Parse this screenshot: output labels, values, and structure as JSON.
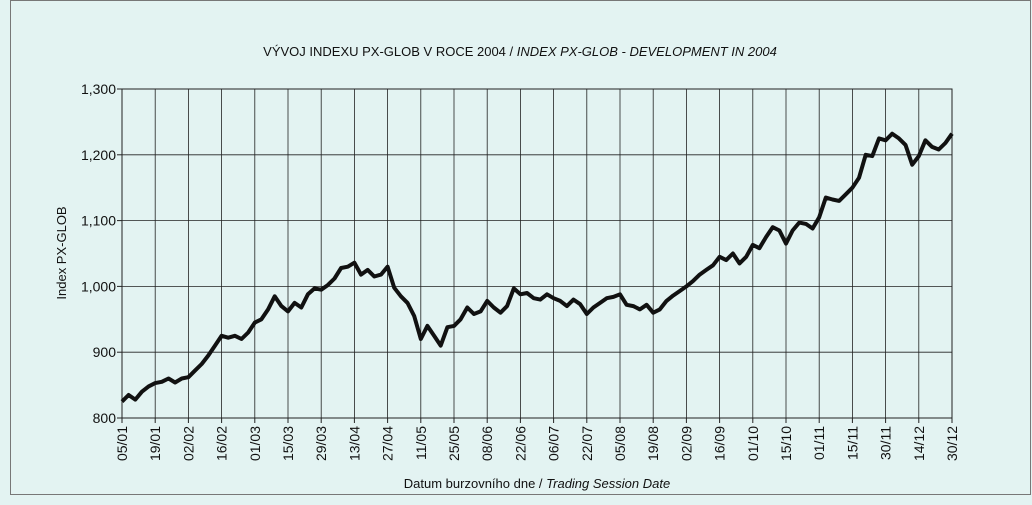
{
  "chart_data": {
    "type": "line",
    "title": "VÝVOJ INDEXU PX-GLOB V ROCE 2004 /",
    "title_en": "INDEX PX-GLOB - DEVELOPMENT IN 2004",
    "y_label": "Index PX-GLOB",
    "x_label": "Datum burzovního dne /",
    "x_label_en": "Trading Session Date",
    "categories": [
      "05/01",
      null,
      null,
      null,
      null,
      "19/01",
      null,
      null,
      null,
      null,
      "02/02",
      null,
      null,
      null,
      null,
      "16/02",
      null,
      null,
      null,
      null,
      "01/03",
      null,
      null,
      null,
      null,
      "15/03",
      null,
      null,
      null,
      null,
      "29/03",
      null,
      null,
      null,
      null,
      "13/04",
      null,
      null,
      null,
      null,
      "27/04",
      null,
      null,
      null,
      null,
      "11/05",
      null,
      null,
      null,
      null,
      "25/05",
      null,
      null,
      null,
      null,
      "08/06",
      null,
      null,
      null,
      null,
      "22/06",
      null,
      null,
      null,
      null,
      "06/07",
      null,
      null,
      null,
      null,
      "22/07",
      null,
      null,
      null,
      null,
      "05/08",
      null,
      null,
      null,
      null,
      "19/08",
      null,
      null,
      null,
      null,
      "02/09",
      null,
      null,
      null,
      null,
      "16/09",
      null,
      null,
      null,
      null,
      "01/10",
      null,
      null,
      null,
      null,
      "15/10",
      null,
      null,
      null,
      null,
      "01/11",
      null,
      null,
      null,
      null,
      "15/11",
      null,
      null,
      null,
      null,
      "30/11",
      null,
      null,
      null,
      null,
      "14/12",
      null,
      null,
      null,
      null,
      "30/12"
    ],
    "series": [
      {
        "name": "PX-GLOB",
        "color": "#111111",
        "values": [
          825,
          835,
          828,
          840,
          848,
          853,
          855,
          860,
          854,
          860,
          862,
          872,
          882,
          895,
          910,
          925,
          922,
          925,
          920,
          930,
          945,
          950,
          965,
          985,
          970,
          962,
          975,
          968,
          988,
          997,
          995,
          1002,
          1012,
          1028,
          1030,
          1036,
          1018,
          1025,
          1015,
          1018,
          1030,
          998,
          985,
          975,
          955,
          920,
          940,
          925,
          910,
          938,
          940,
          950,
          968,
          958,
          962,
          978,
          968,
          960,
          970,
          997,
          988,
          990,
          982,
          980,
          988,
          982,
          978,
          970,
          980,
          973,
          958,
          968,
          975,
          982,
          984,
          988,
          972,
          970,
          965,
          972,
          960,
          965,
          978,
          986,
          993,
          1000,
          1008,
          1018,
          1025,
          1032,
          1045,
          1040,
          1050,
          1035,
          1045,
          1063,
          1058,
          1075,
          1090,
          1085,
          1065,
          1085,
          1097,
          1095,
          1088,
          1105,
          1135,
          1132,
          1130,
          1140,
          1150,
          1165,
          1200,
          1198,
          1225,
          1222,
          1232,
          1225,
          1215,
          1185,
          1198,
          1222,
          1212,
          1208,
          1218,
          1232
        ]
      }
    ],
    "ylim": [
      800,
      1300
    ],
    "yticks": [
      800,
      900,
      {
        "value": 1000,
        "label": "1,000"
      },
      {
        "value": 1100,
        "label": "1,100"
      },
      {
        "value": 1200,
        "label": "1,200"
      },
      {
        "value": 1300,
        "label": "1,300"
      }
    ],
    "grid": true
  }
}
